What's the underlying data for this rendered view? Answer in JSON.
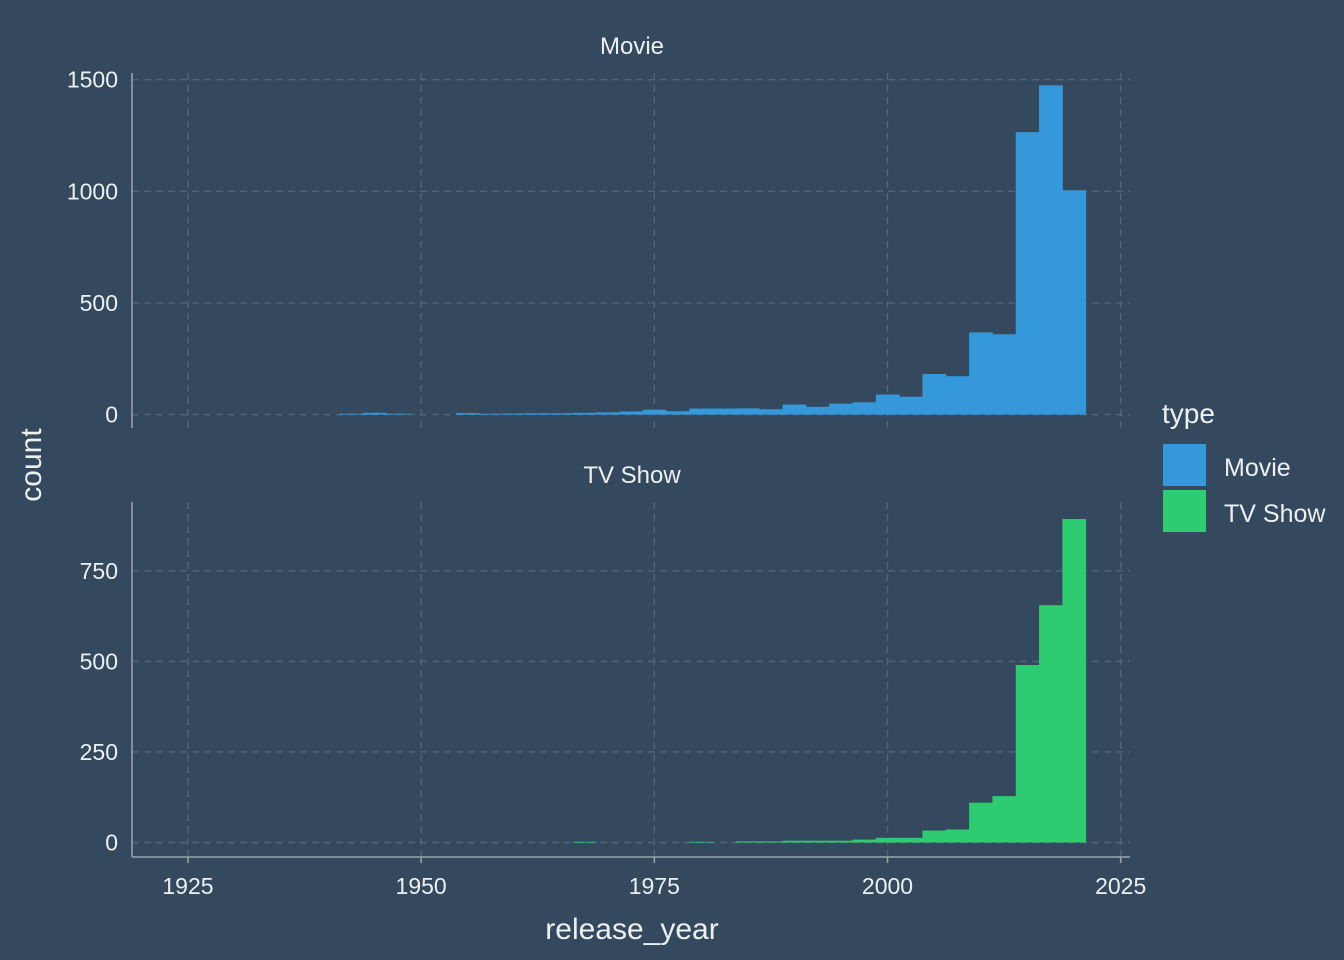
{
  "chart_data": {
    "type": "bar",
    "subtype": "histogram-faceted",
    "x_label": "release_year",
    "y_label": "count",
    "x_ticks": [
      1925,
      1950,
      1975,
      2000,
      2025
    ],
    "x_range": [
      1919,
      2026
    ],
    "bin_width": 2.5,
    "legend": {
      "title": "type",
      "position": "right",
      "entries": [
        {
          "label": "Movie",
          "color": "#3498db"
        },
        {
          "label": "TV Show",
          "color": "#2ecc71"
        }
      ]
    },
    "grid": true,
    "panels": [
      {
        "strip_label": "Movie",
        "color": "#3498db",
        "y_range": [
          -60,
          1530
        ],
        "y_ticks": [
          0,
          500,
          1000,
          1500
        ],
        "bins": [
          {
            "x": 1942.5,
            "count": 4
          },
          {
            "x": 1945.0,
            "count": 8
          },
          {
            "x": 1947.5,
            "count": 4
          },
          {
            "x": 1955.0,
            "count": 7
          },
          {
            "x": 1957.5,
            "count": 4
          },
          {
            "x": 1960.0,
            "count": 5
          },
          {
            "x": 1962.5,
            "count": 6
          },
          {
            "x": 1965.0,
            "count": 6
          },
          {
            "x": 1967.5,
            "count": 8
          },
          {
            "x": 1970.0,
            "count": 10
          },
          {
            "x": 1972.5,
            "count": 14
          },
          {
            "x": 1975.0,
            "count": 22
          },
          {
            "x": 1977.5,
            "count": 15
          },
          {
            "x": 1980.0,
            "count": 27
          },
          {
            "x": 1982.5,
            "count": 27
          },
          {
            "x": 1985.0,
            "count": 28
          },
          {
            "x": 1987.5,
            "count": 24
          },
          {
            "x": 1990.0,
            "count": 45
          },
          {
            "x": 1992.5,
            "count": 35
          },
          {
            "x": 1995.0,
            "count": 49
          },
          {
            "x": 1997.5,
            "count": 55
          },
          {
            "x": 2000.0,
            "count": 90
          },
          {
            "x": 2002.5,
            "count": 80
          },
          {
            "x": 2005.0,
            "count": 182
          },
          {
            "x": 2007.5,
            "count": 172
          },
          {
            "x": 2010.0,
            "count": 368
          },
          {
            "x": 2012.5,
            "count": 360
          },
          {
            "x": 2015.0,
            "count": 1265
          },
          {
            "x": 2017.5,
            "count": 1475
          },
          {
            "x": 2020.0,
            "count": 1005
          }
        ]
      },
      {
        "strip_label": "TV Show",
        "color": "#2ecc71",
        "y_range": [
          -40,
          940
        ],
        "y_ticks": [
          0,
          250,
          500,
          750
        ],
        "bins": [
          {
            "x": 1967.5,
            "count": 2
          },
          {
            "x": 1980.0,
            "count": 2
          },
          {
            "x": 1985.0,
            "count": 3
          },
          {
            "x": 1987.5,
            "count": 3
          },
          {
            "x": 1990.0,
            "count": 5
          },
          {
            "x": 1992.5,
            "count": 5
          },
          {
            "x": 1995.0,
            "count": 5
          },
          {
            "x": 1997.5,
            "count": 8
          },
          {
            "x": 2000.0,
            "count": 13
          },
          {
            "x": 2002.5,
            "count": 13
          },
          {
            "x": 2005.0,
            "count": 33
          },
          {
            "x": 2007.5,
            "count": 36
          },
          {
            "x": 2010.0,
            "count": 110
          },
          {
            "x": 2012.5,
            "count": 128
          },
          {
            "x": 2015.0,
            "count": 490
          },
          {
            "x": 2017.5,
            "count": 655
          },
          {
            "x": 2020.0,
            "count": 893
          }
        ]
      }
    ]
  }
}
